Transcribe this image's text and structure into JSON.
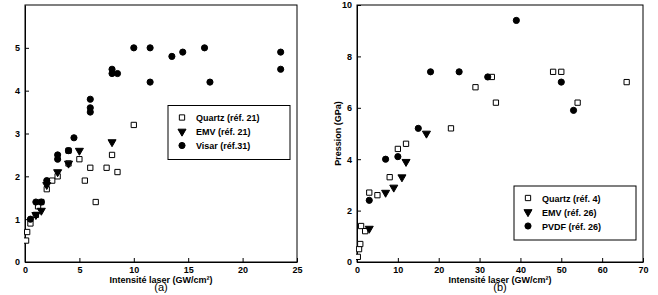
{
  "chart_data": [
    {
      "type": "scatter",
      "caption": "(a)",
      "x_label": "Intensité laser (GW/cm²)",
      "xlim": [
        0,
        25
      ],
      "xticks": [
        0,
        5,
        10,
        15,
        20,
        25
      ],
      "ylim": [
        0,
        6
      ],
      "yticks": [
        0,
        1,
        2,
        3,
        4,
        5
      ],
      "legend": "right",
      "series": [
        {
          "name": "Quartz (réf. 21)",
          "color": "#000000",
          "marker": "square",
          "x": [
            0.1,
            0.2,
            0.5,
            1,
            1.2,
            1.5,
            2,
            2.5,
            3,
            4,
            4,
            5,
            5.5,
            6,
            6.5,
            7.5,
            8,
            8.5,
            10
          ],
          "values": [
            0.5,
            0.7,
            0.9,
            1.1,
            1.3,
            1.4,
            1.7,
            1.9,
            2.0,
            2.3,
            2.6,
            2.4,
            1.9,
            2.2,
            1.4,
            2.2,
            2.5,
            2.1,
            3.2
          ]
        },
        {
          "name": "EMV (réf. 21)",
          "color": "#000000",
          "marker": "triangle-down",
          "x": [
            1,
            1.5,
            2,
            3,
            4,
            5,
            8
          ],
          "values": [
            1.1,
            1.2,
            1.8,
            2.1,
            2.3,
            2.6,
            2.8
          ]
        },
        {
          "name": "Visar (réf.31)",
          "color": "#000000",
          "marker": "circle",
          "x": [
            0.5,
            1,
            1.5,
            2,
            3,
            3,
            4,
            4.5,
            6,
            6,
            6,
            8,
            8,
            8.5,
            10,
            11.5,
            11.5,
            13.5,
            14.5,
            16.5,
            17,
            23.5,
            23.5
          ],
          "values": [
            1.0,
            1.4,
            1.4,
            1.9,
            2.4,
            2.5,
            2.6,
            2.9,
            3.6,
            3.5,
            3.8,
            4.4,
            4.5,
            4.4,
            5.0,
            5.0,
            4.2,
            4.8,
            4.9,
            5.0,
            4.2,
            4.9,
            4.5
          ]
        }
      ]
    },
    {
      "type": "scatter",
      "caption": "(b)",
      "x_label": "Intensité laser (GW/cm²)",
      "y_label": "Pression (GPa)",
      "xlim": [
        0,
        70
      ],
      "xticks": [
        0,
        10,
        20,
        30,
        40,
        50,
        60,
        70
      ],
      "ylim": [
        0,
        10
      ],
      "yticks": [
        0,
        2,
        4,
        6,
        8,
        10
      ],
      "legend": "lower right",
      "series": [
        {
          "name": "Quartz (réf. 4)",
          "color": "#000000",
          "marker": "square",
          "x": [
            0.2,
            0.5,
            0.8,
            1,
            2,
            3,
            5,
            8,
            10,
            12,
            23,
            29,
            33,
            34,
            48,
            50,
            54,
            66
          ],
          "values": [
            0.2,
            0.5,
            0.7,
            1.4,
            1.2,
            2.7,
            2.6,
            3.3,
            4.4,
            4.6,
            5.2,
            6.8,
            7.2,
            6.2,
            7.4,
            7.4,
            6.2,
            7.0
          ]
        },
        {
          "name": "EMV (réf. 26)",
          "color": "#000000",
          "marker": "triangle-down",
          "x": [
            3,
            7,
            9,
            11,
            12,
            17
          ],
          "values": [
            1.3,
            2.7,
            2.9,
            3.3,
            3.9,
            5.0
          ]
        },
        {
          "name": "PVDF (réf. 26)",
          "color": "#000000",
          "marker": "circle",
          "x": [
            3,
            7,
            10,
            15,
            18,
            25,
            32,
            39,
            50,
            53
          ],
          "values": [
            2.4,
            4.0,
            4.1,
            5.2,
            7.4,
            7.4,
            7.2,
            9.4,
            7.0,
            5.9
          ]
        }
      ]
    }
  ]
}
